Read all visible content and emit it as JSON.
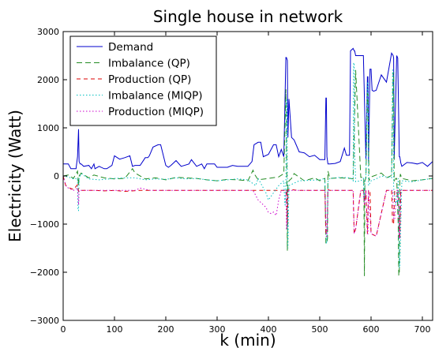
{
  "chart_data": {
    "type": "line",
    "title": "Single house in network",
    "xlabel": "k (min)",
    "ylabel": "Electricity (Watt)",
    "xlim": [
      0,
      720
    ],
    "ylim": [
      -3000,
      3000
    ],
    "xticks": [
      0,
      100,
      200,
      300,
      400,
      500,
      600,
      700
    ],
    "yticks": [
      -3000,
      -2000,
      -1000,
      0,
      1000,
      2000,
      3000
    ],
    "ytick_labels": [
      "−3000",
      "−2000",
      "−1000",
      "0",
      "1000",
      "2000",
      "3000"
    ],
    "grid": false,
    "legend_position": "top-left",
    "series": [
      {
        "name": "Demand",
        "color": "#0000cc",
        "dash": "solid",
        "x": [
          0,
          10,
          15,
          20,
          25,
          28,
          30,
          31,
          33,
          35,
          40,
          50,
          55,
          60,
          62,
          70,
          80,
          85,
          95,
          100,
          110,
          120,
          130,
          135,
          140,
          150,
          160,
          165,
          168,
          175,
          185,
          190,
          200,
          205,
          210,
          220,
          230,
          245,
          250,
          260,
          270,
          275,
          280,
          285,
          295,
          300,
          310,
          320,
          330,
          340,
          350,
          360,
          368,
          372,
          380,
          385,
          390,
          400,
          410,
          415,
          420,
          425,
          430,
          434,
          435,
          437,
          438,
          440,
          445,
          450,
          460,
          470,
          480,
          490,
          500,
          510,
          512,
          513,
          514,
          516,
          520,
          530,
          540,
          548,
          552,
          555,
          558,
          560,
          565,
          567,
          568,
          570,
          575,
          585,
          590,
          593,
          594,
          595,
          598,
          600,
          602,
          605,
          610,
          620,
          630,
          640,
          643,
          644,
          645,
          650,
          652,
          655,
          656,
          658,
          660,
          670,
          680,
          690,
          700,
          710,
          720
        ],
        "y": [
          250,
          250,
          150,
          150,
          150,
          400,
          970,
          300,
          250,
          250,
          200,
          220,
          150,
          250,
          150,
          200,
          150,
          150,
          220,
          420,
          350,
          380,
          420,
          200,
          220,
          220,
          380,
          380,
          420,
          600,
          650,
          650,
          220,
          180,
          220,
          320,
          200,
          250,
          340,
          200,
          250,
          150,
          250,
          250,
          250,
          180,
          180,
          180,
          220,
          200,
          200,
          200,
          300,
          650,
          700,
          700,
          400,
          450,
          650,
          650,
          400,
          550,
          400,
          2460,
          2460,
          2400,
          800,
          1600,
          800,
          750,
          500,
          480,
          400,
          430,
          340,
          340,
          1620,
          1620,
          400,
          250,
          250,
          260,
          300,
          580,
          430,
          430,
          430,
          2600,
          2650,
          2600,
          2600,
          2500,
          2500,
          2500,
          350,
          2060,
          2060,
          300,
          2220,
          2220,
          1780,
          1760,
          1780,
          2100,
          1950,
          2550,
          2500,
          2450,
          350,
          2500,
          2450,
          400,
          400,
          270,
          200,
          280,
          270,
          250,
          280,
          200,
          300
        ]
      },
      {
        "name": "Imbalance (QP)",
        "color": "#228b22",
        "dash": "long-dash",
        "x": [
          0,
          10,
          20,
          28,
          30,
          31,
          35,
          50,
          60,
          80,
          100,
          120,
          135,
          140,
          160,
          180,
          200,
          220,
          240,
          260,
          280,
          300,
          320,
          340,
          360,
          370,
          372,
          380,
          400,
          420,
          430,
          434,
          436,
          437,
          438,
          440,
          445,
          450,
          470,
          490,
          500,
          510,
          512,
          514,
          515,
          516,
          520,
          540,
          560,
          565,
          570,
          580,
          585,
          586,
          587,
          588,
          590,
          593,
          594,
          596,
          598,
          600,
          610,
          620,
          630,
          640,
          643,
          644,
          645,
          648,
          650,
          653,
          654,
          655,
          656,
          657,
          660,
          680,
          700,
          720
        ],
        "y": [
          0,
          20,
          -50,
          100,
          -200,
          0,
          60,
          -40,
          20,
          -40,
          -60,
          -50,
          150,
          60,
          -60,
          -40,
          -80,
          -30,
          -40,
          -50,
          -80,
          -100,
          -70,
          -80,
          -100,
          120,
          50,
          -80,
          -50,
          -20,
          50,
          1800,
          -100,
          -1550,
          -200,
          -100,
          -50,
          50,
          -100,
          -40,
          -100,
          -50,
          -1400,
          -1380,
          -1300,
          100,
          -50,
          -40,
          -50,
          -60,
          2200,
          -30,
          -30,
          -100,
          -2080,
          -100,
          -40,
          1720,
          1720,
          -100,
          -40,
          -20,
          20,
          60,
          -40,
          10,
          2150,
          2150,
          -100,
          -50,
          -50,
          -1000,
          -2060,
          -2060,
          -100,
          40,
          -50,
          -100,
          -80,
          -50
        ]
      },
      {
        "name": "Production (QP)",
        "color": "#dd0000",
        "dash": "dash",
        "x": [
          0,
          5,
          10,
          20,
          28,
          30,
          31,
          33,
          40,
          60,
          80,
          100,
          120,
          150,
          200,
          250,
          300,
          350,
          380,
          420,
          435,
          437,
          438,
          440,
          460,
          500,
          510,
          512,
          514,
          516,
          520,
          550,
          565,
          567,
          570,
          580,
          585,
          587,
          590,
          593,
          595,
          598,
          600,
          610,
          630,
          640,
          642,
          644,
          646,
          650,
          653,
          655,
          656,
          658,
          660,
          700,
          720
        ],
        "y": [
          0,
          -200,
          -240,
          -280,
          -180,
          -320,
          -300,
          -300,
          -300,
          -300,
          -310,
          -300,
          -320,
          -300,
          -300,
          -300,
          -300,
          -300,
          -300,
          -300,
          -300,
          -1000,
          -300,
          -280,
          -300,
          -300,
          -300,
          -1200,
          -1200,
          -280,
          -300,
          -300,
          -300,
          -1200,
          -1100,
          -300,
          -300,
          -600,
          -300,
          -1200,
          -300,
          -300,
          -1200,
          -1250,
          -300,
          -300,
          -1000,
          -1000,
          -300,
          -300,
          -300,
          -1300,
          -1300,
          -300,
          -300,
          -300,
          -300
        ]
      },
      {
        "name": "Imbalance (MIQP)",
        "color": "#00bfbf",
        "dash": "dotted",
        "x": [
          0,
          10,
          20,
          28,
          29,
          30,
          31,
          35,
          50,
          70,
          90,
          100,
          120,
          140,
          160,
          180,
          200,
          220,
          240,
          260,
          280,
          300,
          320,
          340,
          360,
          375,
          380,
          395,
          400,
          410,
          420,
          430,
          432,
          433,
          434,
          435,
          436,
          437,
          438,
          440,
          460,
          500,
          510,
          513,
          514,
          516,
          520,
          540,
          560,
          565,
          566,
          567,
          568,
          570,
          580,
          585,
          586,
          587,
          588,
          590,
          593,
          594,
          595,
          600,
          610,
          620,
          640,
          642,
          643,
          644,
          645,
          648,
          650,
          652,
          653,
          655,
          656,
          660,
          680,
          700,
          720
        ],
        "y": [
          0,
          -20,
          -60,
          -50,
          -720,
          -720,
          -50,
          50,
          -60,
          -80,
          -60,
          -50,
          -40,
          -40,
          -80,
          -60,
          -70,
          -40,
          -60,
          -50,
          -80,
          -100,
          -80,
          -60,
          -80,
          -200,
          -50,
          -350,
          -500,
          -350,
          -200,
          -100,
          -600,
          -600,
          -100,
          1600,
          1600,
          -100,
          -1500,
          -200,
          -100,
          -80,
          -50,
          -1400,
          -1400,
          -120,
          -50,
          -30,
          -40,
          -100,
          2350,
          2350,
          500,
          -120,
          -100,
          -50,
          -500,
          -500,
          -120,
          0,
          1950,
          1950,
          -200,
          -100,
          -60,
          0,
          -40,
          2200,
          2200,
          -200,
          -400,
          -600,
          -500,
          -550,
          -50,
          -1900,
          -1900,
          -100,
          -120,
          -80,
          -50
        ]
      },
      {
        "name": "Production (MIQP)",
        "color": "#cc00cc",
        "dash": "dotted",
        "x": [
          0,
          5,
          10,
          20,
          28,
          30,
          31,
          33,
          40,
          60,
          80,
          100,
          120,
          140,
          150,
          170,
          190,
          200,
          220,
          240,
          260,
          280,
          300,
          320,
          340,
          360,
          370,
          375,
          380,
          390,
          395,
          400,
          405,
          410,
          415,
          420,
          425,
          430,
          434,
          435,
          436,
          437,
          438,
          440,
          460,
          500,
          510,
          513,
          514,
          516,
          520,
          550,
          565,
          567,
          570,
          580,
          585,
          587,
          590,
          593,
          594,
          595,
          600,
          610,
          630,
          640,
          642,
          644,
          646,
          650,
          653,
          655,
          656,
          658,
          660,
          700,
          720
        ],
        "y": [
          0,
          -200,
          -250,
          -300,
          -250,
          -600,
          -300,
          -300,
          -300,
          -300,
          -300,
          -300,
          -300,
          -300,
          -250,
          -300,
          -300,
          -300,
          -300,
          -300,
          -300,
          -300,
          -300,
          -300,
          -300,
          -300,
          -300,
          -400,
          -500,
          -600,
          -650,
          -760,
          -780,
          -750,
          -820,
          -500,
          -300,
          -300,
          -300,
          -1100,
          -1100,
          -300,
          -300,
          -300,
          -300,
          -300,
          -300,
          -1250,
          -1250,
          -300,
          -300,
          -300,
          -300,
          -1200,
          -1100,
          -300,
          -300,
          -600,
          -300,
          -1200,
          -1200,
          -300,
          -1200,
          -1250,
          -300,
          -300,
          -300,
          -900,
          -900,
          -300,
          -300,
          -1300,
          -1300,
          -300,
          -300,
          -300,
          -300
        ]
      }
    ]
  }
}
